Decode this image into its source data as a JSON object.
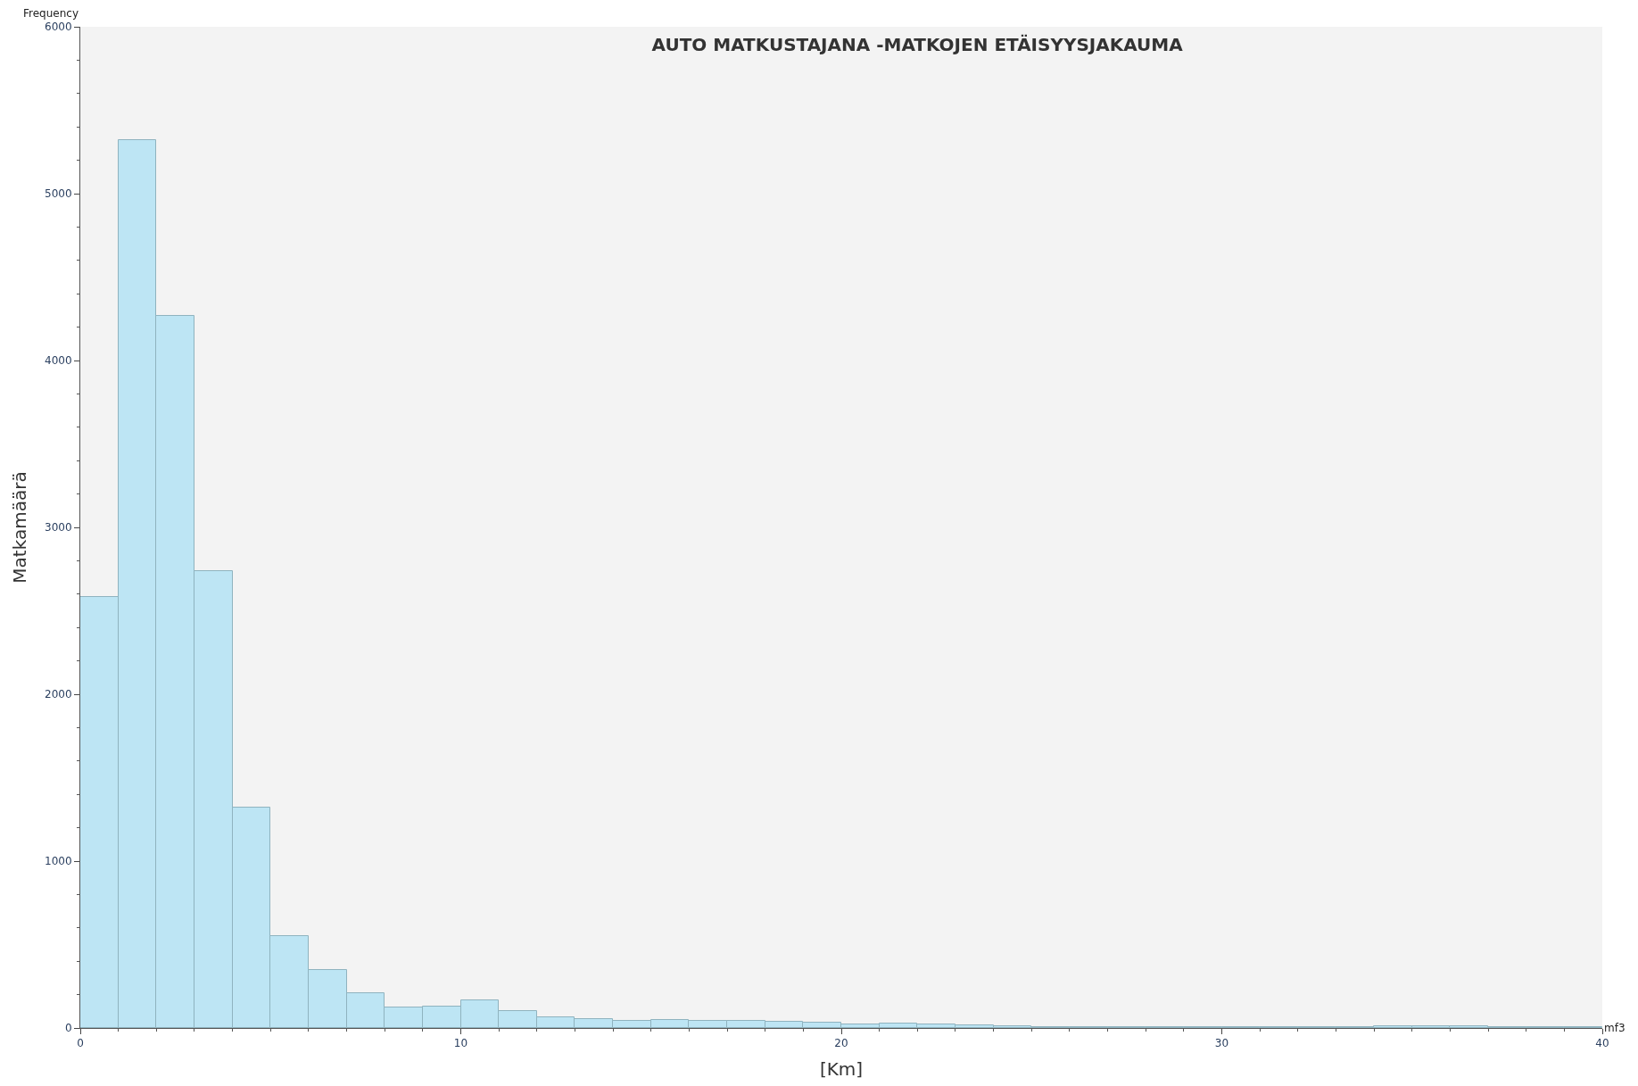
{
  "chart_data": {
    "type": "histogram",
    "title": "AUTO MATKUSTAJANA -MATKOJEN ETÄISYYSJAKAUMA",
    "xlabel": "[Km]",
    "ylabel": "Matkamäärä",
    "annotations": [
      "Frequency",
      "mf3"
    ],
    "bins": [
      0,
      1,
      2,
      3,
      4,
      5,
      6,
      7,
      8,
      9,
      10,
      11,
      12,
      13,
      14,
      15,
      16,
      17,
      18,
      19,
      20,
      21,
      22,
      23,
      24,
      25,
      26,
      27,
      28,
      29,
      30,
      31,
      32,
      33,
      34,
      35,
      36,
      37,
      38,
      39,
      40
    ],
    "values": [
      2585,
      5320,
      4270,
      2740,
      1320,
      550,
      350,
      210,
      125,
      130,
      165,
      100,
      62,
      56,
      43,
      50,
      43,
      43,
      37,
      31,
      20,
      25,
      20,
      15,
      10,
      8,
      8,
      8,
      3,
      3,
      3,
      3,
      3,
      8,
      12,
      12,
      12,
      8,
      3,
      3
    ],
    "color": "#bde5f4",
    "xlim": [
      0,
      40
    ],
    "xticks": [
      0,
      10,
      20,
      30,
      40
    ],
    "ylim": [
      0,
      6000
    ],
    "yticks": [
      0,
      1000,
      2000,
      3000,
      4000,
      5000,
      6000
    ],
    "grid": false
  }
}
